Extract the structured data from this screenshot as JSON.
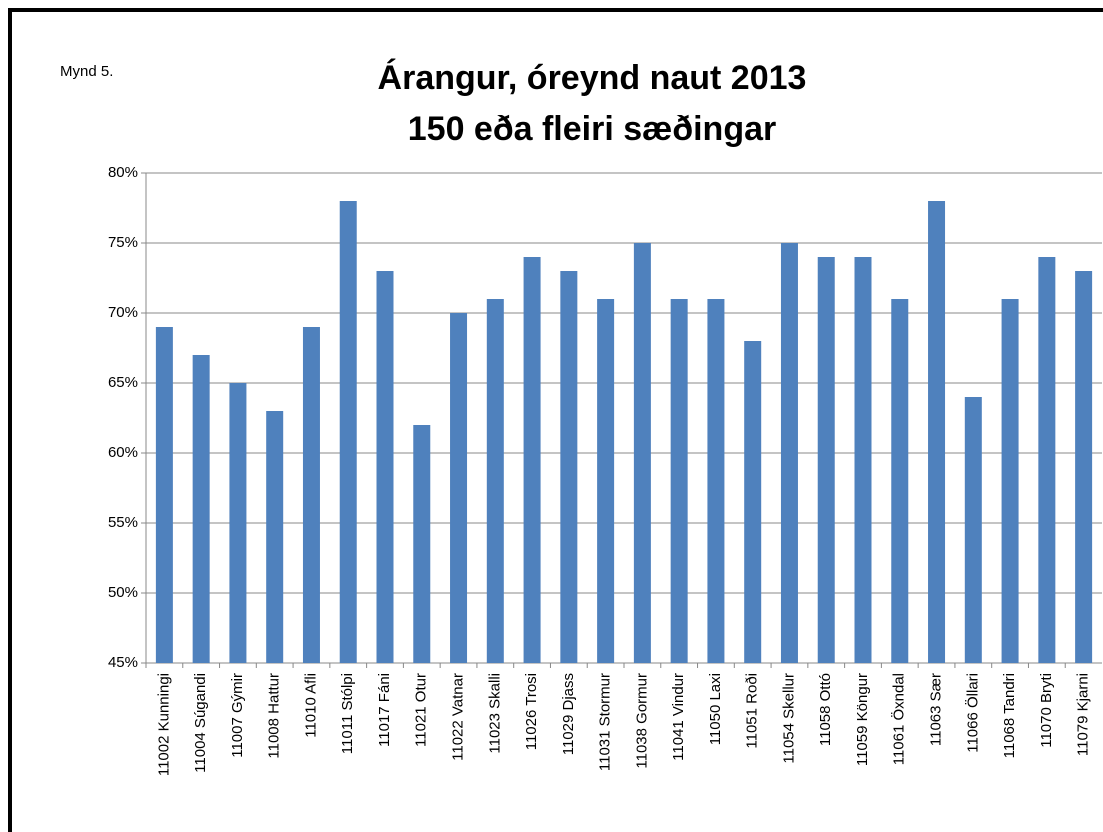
{
  "chart_data": {
    "type": "bar",
    "title": [
      "Árangur, óreynd naut 2013",
      "150 eða fleiri sæðingar"
    ],
    "annotation": "Mynd 5.",
    "categories": [
      "11002 Kunningi",
      "11004 Súgandi",
      "11007 Gýmir",
      "11008 Hattur",
      "11010 Afli",
      "11011 Stólpi",
      "11017 Fáni",
      "11021 Otur",
      "11022 Vatnar",
      "11023 Skalli",
      "11026 Trosi",
      "11029 Djass",
      "11031 Stormur",
      "11038 Gormur",
      "11041 Vindur",
      "11050 Laxi",
      "11051 Roði",
      "11054 Skellur",
      "11058 Ottó",
      "11059 Köngur",
      "11061 Öxndal",
      "11063 Sær",
      "11066 Öllari",
      "11068 Tandri",
      "11070 Bryti",
      "11079 Kjarni"
    ],
    "values": [
      69,
      67,
      65,
      63,
      69,
      78,
      73,
      62,
      70,
      71,
      74,
      73,
      71,
      75,
      71,
      71,
      68,
      75,
      74,
      74,
      71,
      78,
      64,
      71,
      74,
      73
    ],
    "color": "#4f81bd",
    "ylim": [
      45,
      80
    ],
    "yticks": [
      {
        "value": 45,
        "label": "45%"
      },
      {
        "value": 50,
        "label": "50%"
      },
      {
        "value": 55,
        "label": "55%"
      },
      {
        "value": 60,
        "label": "60%"
      },
      {
        "value": 65,
        "label": "65%"
      },
      {
        "value": 70,
        "label": "70%"
      },
      {
        "value": 75,
        "label": "75%"
      },
      {
        "value": 80,
        "label": "80%"
      }
    ],
    "grid": true
  }
}
